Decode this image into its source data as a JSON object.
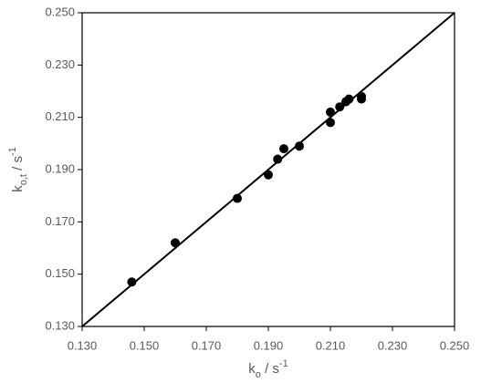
{
  "chart_data": {
    "type": "scatter",
    "x_label": [
      "k",
      "o",
      " / s",
      "-1"
    ],
    "y_label": [
      "k",
      "o,t",
      " / s",
      "-1"
    ],
    "x": [
      0.146,
      0.16,
      0.18,
      0.19,
      0.193,
      0.195,
      0.2,
      0.21,
      0.21,
      0.213,
      0.215,
      0.216,
      0.22,
      0.22
    ],
    "values": [
      0.147,
      0.162,
      0.179,
      0.188,
      0.194,
      0.198,
      0.199,
      0.208,
      0.212,
      0.214,
      0.216,
      0.217,
      0.218,
      0.217
    ],
    "color": "#000000",
    "fit_line": {
      "x": [
        0.13,
        0.25
      ],
      "y": [
        0.13,
        0.25
      ],
      "color": "#000000"
    },
    "xlim": [
      0.13,
      0.25
    ],
    "ylim": [
      0.13,
      0.25
    ],
    "xticks": [
      {
        "value": 0.13,
        "label": "0.130"
      },
      {
        "value": 0.15,
        "label": "0.150"
      },
      {
        "value": 0.17,
        "label": "0.170"
      },
      {
        "value": 0.19,
        "label": "0.190"
      },
      {
        "value": 0.21,
        "label": "0.210"
      },
      {
        "value": 0.23,
        "label": "0.230"
      },
      {
        "value": 0.25,
        "label": "0.250"
      }
    ],
    "yticks": [
      {
        "value": 0.13,
        "label": "0.130"
      },
      {
        "value": 0.15,
        "label": "0.150"
      },
      {
        "value": 0.17,
        "label": "0.170"
      },
      {
        "value": 0.19,
        "label": "0.190"
      },
      {
        "value": 0.21,
        "label": "0.210"
      },
      {
        "value": 0.23,
        "label": "0.230"
      },
      {
        "value": 0.25,
        "label": "0.250"
      }
    ],
    "grid": false
  }
}
